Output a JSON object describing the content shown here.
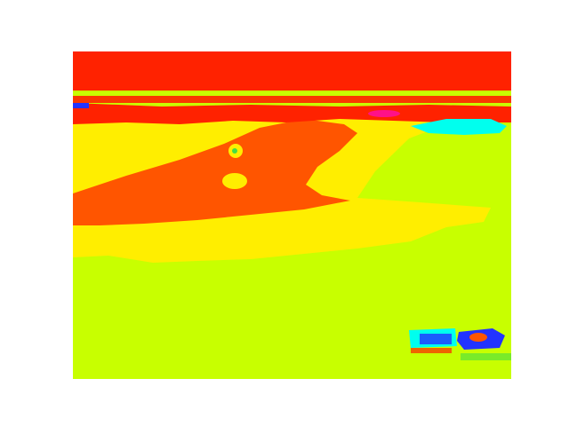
{
  "image": {
    "type": "false-color segmentation",
    "palette": {
      "sky_red": "#ff2200",
      "orange": "#ff5500",
      "yellow": "#ffee00",
      "lime": "#c8ff00",
      "cyan": "#00ffee",
      "blue": "#2233ff",
      "magenta": "#ff1188",
      "green": "#44dd44"
    }
  }
}
